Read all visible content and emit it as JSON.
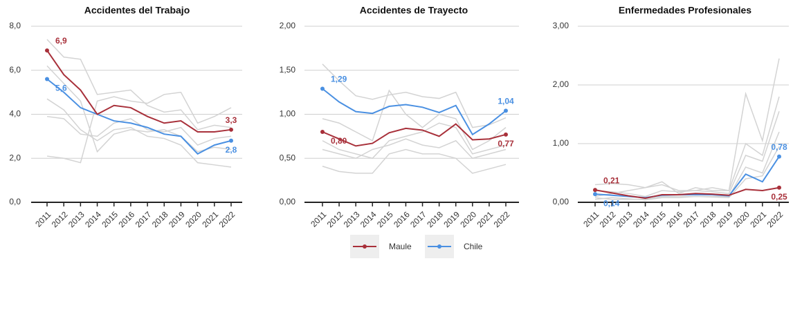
{
  "chart_data": [
    {
      "type": "line",
      "title": "Accidentes del Trabajo",
      "categories": [
        "2011",
        "2012",
        "2013",
        "2014",
        "2015",
        "2016",
        "2017",
        "2018",
        "2019",
        "2020",
        "2021",
        "2022"
      ],
      "ylim": [
        0,
        8
      ],
      "yticks": [
        {
          "value": 0,
          "label": "0,0"
        },
        {
          "value": 2,
          "label": "2,0"
        },
        {
          "value": 4,
          "label": "4,0"
        },
        {
          "value": 6,
          "label": "6,0"
        },
        {
          "value": 8,
          "label": "8,0"
        }
      ],
      "grid": true,
      "series": [
        {
          "name": "Maule",
          "color": "#a8303a",
          "values": [
            6.9,
            5.8,
            5.1,
            4.0,
            4.4,
            4.3,
            3.9,
            3.6,
            3.7,
            3.2,
            3.2,
            3.3
          ],
          "value_labels": [
            "6,9",
            null,
            null,
            null,
            null,
            null,
            null,
            null,
            null,
            null,
            null,
            "3,3"
          ]
        },
        {
          "name": "Chile",
          "color": "#4a90e2",
          "values": [
            5.6,
            5.0,
            4.3,
            4.0,
            3.7,
            3.6,
            3.4,
            3.1,
            3.0,
            2.2,
            2.6,
            2.8
          ],
          "value_labels": [
            "5,6",
            null,
            null,
            null,
            null,
            null,
            null,
            null,
            null,
            null,
            null,
            "2,8"
          ]
        },
        {
          "color": "#d3d3d3",
          "values": [
            7.4,
            6.6,
            6.5,
            4.9,
            5.0,
            5.1,
            4.4,
            4.1,
            4.2,
            3.3,
            3.5,
            3.4
          ]
        },
        {
          "color": "#d3d3d3",
          "values": [
            4.7,
            4.2,
            3.3,
            2.8,
            3.3,
            3.4,
            3.0,
            2.9,
            2.6,
            1.8,
            1.7,
            1.6
          ]
        },
        {
          "color": "#d3d3d3",
          "values": [
            2.1,
            2.0,
            1.8,
            4.6,
            4.8,
            4.6,
            4.5,
            4.9,
            5.0,
            3.6,
            3.9,
            4.3
          ]
        },
        {
          "color": "#d3d3d3",
          "values": [
            6.2,
            5.4,
            4.6,
            2.3,
            3.1,
            3.3,
            3.2,
            3.3,
            3.0,
            2.3,
            2.5,
            2.4
          ]
        },
        {
          "color": "#d3d3d3",
          "values": [
            3.9,
            3.8,
            3.1,
            3.0,
            3.6,
            3.8,
            3.3,
            3.2,
            3.4,
            2.6,
            2.9,
            3.0
          ]
        }
      ]
    },
    {
      "type": "line",
      "title": "Accidentes de Trayecto",
      "categories": [
        "2011",
        "2012",
        "2013",
        "2014",
        "2015",
        "2016",
        "2017",
        "2018",
        "2019",
        "2020",
        "2021",
        "2022"
      ],
      "ylim": [
        0,
        2
      ],
      "yticks": [
        {
          "value": 0,
          "label": "0,00"
        },
        {
          "value": 0.5,
          "label": "0,50"
        },
        {
          "value": 1,
          "label": "1,00"
        },
        {
          "value": 1.5,
          "label": "1,50"
        },
        {
          "value": 2,
          "label": "2,00"
        }
      ],
      "grid": true,
      "series": [
        {
          "name": "Maule",
          "color": "#a8303a",
          "values": [
            0.8,
            0.72,
            0.64,
            0.67,
            0.79,
            0.84,
            0.82,
            0.75,
            0.89,
            0.71,
            0.72,
            0.77
          ],
          "value_labels": [
            "0,80",
            null,
            null,
            null,
            null,
            null,
            null,
            null,
            null,
            null,
            null,
            "0,77"
          ]
        },
        {
          "name": "Chile",
          "color": "#4a90e2",
          "values": [
            1.29,
            1.14,
            1.03,
            1.01,
            1.09,
            1.11,
            1.08,
            1.02,
            1.1,
            0.77,
            0.89,
            1.04
          ],
          "value_labels": [
            "1,29",
            null,
            null,
            null,
            null,
            null,
            null,
            null,
            null,
            null,
            null,
            "1,04"
          ]
        },
        {
          "color": "#d3d3d3",
          "values": [
            1.57,
            1.38,
            1.21,
            1.17,
            1.22,
            1.25,
            1.2,
            1.18,
            1.25,
            0.85,
            0.88,
            0.96
          ]
        },
        {
          "color": "#d3d3d3",
          "values": [
            0.41,
            0.35,
            0.33,
            0.33,
            0.55,
            0.6,
            0.55,
            0.55,
            0.5,
            0.33,
            0.38,
            0.43
          ]
        },
        {
          "color": "#d3d3d3",
          "values": [
            0.7,
            0.6,
            0.55,
            0.5,
            0.7,
            0.75,
            0.8,
            0.9,
            0.85,
            0.55,
            0.6,
            0.65
          ]
        },
        {
          "color": "#d3d3d3",
          "values": [
            0.95,
            0.9,
            0.8,
            0.7,
            1.27,
            1.0,
            0.85,
            1.0,
            0.95,
            0.6,
            0.7,
            0.85
          ]
        },
        {
          "color": "#d3d3d3",
          "values": [
            0.6,
            0.55,
            0.5,
            0.6,
            0.65,
            0.72,
            0.65,
            0.62,
            0.7,
            0.5,
            0.55,
            0.6
          ]
        }
      ]
    },
    {
      "type": "line",
      "title": "Enfermedades Profesionales",
      "categories": [
        "2011",
        "2012",
        "2013",
        "2014",
        "2015",
        "2016",
        "2017",
        "2018",
        "2019",
        "2020",
        "2021",
        "2022"
      ],
      "ylim": [
        0,
        3
      ],
      "yticks": [
        {
          "value": 0,
          "label": "0,00"
        },
        {
          "value": 1,
          "label": "1,00"
        },
        {
          "value": 2,
          "label": "2,00"
        },
        {
          "value": 3,
          "label": "3,00"
        }
      ],
      "grid": true,
      "series": [
        {
          "name": "Maule",
          "color": "#a8303a",
          "values": [
            0.21,
            0.16,
            0.11,
            0.07,
            0.13,
            0.13,
            0.15,
            0.14,
            0.12,
            0.22,
            0.2,
            0.25
          ],
          "value_labels": [
            "0,21",
            null,
            null,
            null,
            null,
            null,
            null,
            null,
            null,
            null,
            null,
            "0,25"
          ]
        },
        {
          "name": "Chile",
          "color": "#4a90e2",
          "values": [
            0.14,
            0.12,
            0.1,
            0.08,
            0.12,
            0.13,
            0.13,
            0.13,
            0.11,
            0.48,
            0.35,
            0.78
          ],
          "value_labels": [
            "0,14",
            null,
            null,
            null,
            null,
            null,
            null,
            null,
            null,
            null,
            null,
            "0,78"
          ]
        },
        {
          "color": "#d3d3d3",
          "values": [
            0.3,
            0.32,
            0.3,
            0.25,
            0.35,
            0.15,
            0.25,
            0.2,
            0.2,
            1.85,
            1.05,
            2.45
          ]
        },
        {
          "color": "#d3d3d3",
          "values": [
            0.1,
            0.15,
            0.2,
            0.25,
            0.3,
            0.2,
            0.2,
            0.25,
            0.2,
            1.0,
            0.8,
            1.8
          ]
        },
        {
          "color": "#d3d3d3",
          "values": [
            0.08,
            0.05,
            0.05,
            0.05,
            0.1,
            0.1,
            0.1,
            0.1,
            0.1,
            0.6,
            0.5,
            1.2
          ]
        },
        {
          "color": "#d3d3d3",
          "values": [
            0.2,
            0.18,
            0.15,
            0.1,
            0.2,
            0.18,
            0.2,
            0.18,
            0.15,
            0.8,
            0.7,
            1.55
          ]
        },
        {
          "color": "#d3d3d3",
          "values": [
            0.05,
            0.08,
            0.06,
            0.04,
            0.08,
            0.08,
            0.1,
            0.09,
            0.08,
            0.4,
            0.45,
            0.95
          ]
        }
      ]
    }
  ]
}
